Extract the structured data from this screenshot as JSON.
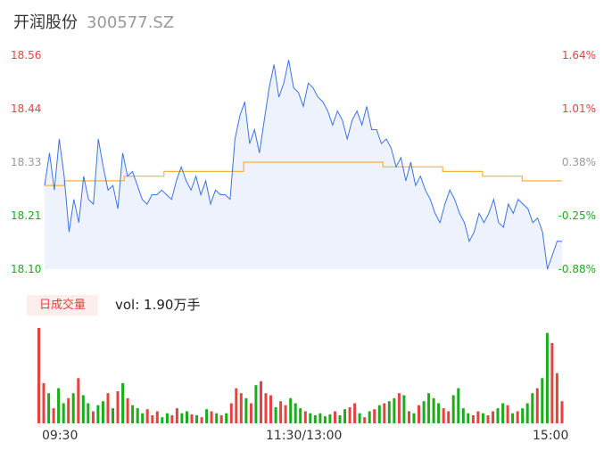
{
  "header": {
    "stock_name": "开润股份",
    "stock_code": "300577.SZ"
  },
  "price_axis": [
    "18.56",
    "18.44",
    "18.33",
    "18.21",
    "18.10"
  ],
  "pct_axis": [
    "1.64%",
    "1.01%",
    "0.38%",
    "-0.25%",
    "-0.88%"
  ],
  "volume_panel": {
    "period_tab": "日成交量",
    "volume_text": "vol: 1.90万手"
  },
  "time_axis": [
    "09:30",
    "11:30/13:00",
    "15:00"
  ],
  "colors": {
    "price_line": "#3b73e8",
    "avg_line": "#f3b33d",
    "up": "#e64340",
    "down": "#1aad19",
    "fill": "#edf2fd"
  },
  "chart_data": [
    {
      "type": "line",
      "x_labels": [
        "09:30",
        "11:30/13:00",
        "15:00"
      ],
      "ylim": [
        18.1,
        18.56
      ],
      "pct_range": [
        "-0.88%",
        "1.64%"
      ],
      "grid": false,
      "series": [
        {
          "values": [
            18.28,
            18.35,
            18.27,
            18.38,
            18.3,
            18.18,
            18.25,
            18.2,
            18.3,
            18.25,
            18.24,
            18.38,
            18.32,
            18.27,
            18.28,
            18.23,
            18.35,
            18.3,
            18.31,
            18.28,
            18.25,
            18.24,
            18.26,
            18.26,
            18.27,
            18.26,
            18.25,
            18.29,
            18.32,
            18.29,
            18.27,
            18.3,
            18.26,
            18.29,
            18.24,
            18.27,
            18.26,
            18.26,
            18.25,
            18.38,
            18.43,
            18.46,
            18.37,
            18.4,
            18.35,
            18.42,
            18.49,
            18.54,
            18.47,
            18.5,
            18.55,
            18.49,
            18.48,
            18.45,
            18.5,
            18.49,
            18.47,
            18.46,
            18.44,
            18.41,
            18.44,
            18.42,
            18.38,
            18.42,
            18.44,
            18.41,
            18.45,
            18.4,
            18.4,
            18.37,
            18.38,
            18.36,
            18.32,
            18.34,
            18.29,
            18.33,
            18.28,
            18.3,
            18.27,
            18.25,
            18.22,
            18.2,
            18.24,
            18.27,
            18.25,
            18.22,
            18.2,
            18.16,
            18.18,
            18.22,
            18.2,
            18.22,
            18.25,
            18.2,
            18.19,
            18.24,
            18.22,
            18.25,
            18.24,
            18.23,
            18.2,
            18.21,
            18.18,
            18.1,
            18.13,
            18.16,
            18.16
          ]
        },
        {
          "values": [
            18.28,
            18.28,
            18.29,
            18.29,
            18.29,
            18.3,
            18.3,
            18.31,
            18.31,
            18.31,
            18.31,
            18.33,
            18.33,
            18.33,
            18.33,
            18.33,
            18.33,
            18.33,
            18.32,
            18.32,
            18.32,
            18.31,
            18.31,
            18.3,
            18.3,
            18.29,
            18.29
          ]
        }
      ]
    },
    {
      "type": "bar",
      "x_labels": [
        "09:30",
        "11:30/13:00",
        "15:00"
      ],
      "series": [
        {
          "values": [
            95,
            40,
            30,
            15,
            35,
            20,
            25,
            30,
            45,
            28,
            20,
            12,
            18,
            22,
            30,
            15,
            32,
            40,
            25,
            18,
            15,
            10,
            14,
            8,
            12,
            6,
            10,
            8,
            15,
            10,
            12,
            9,
            8,
            6,
            14,
            12,
            10,
            8,
            10,
            20,
            35,
            30,
            25,
            20,
            38,
            42,
            30,
            28,
            16,
            22,
            18,
            25,
            20,
            15,
            12,
            10,
            8,
            10,
            7,
            9,
            12,
            8,
            14,
            16,
            20,
            10,
            6,
            12,
            14,
            18,
            20,
            22,
            25,
            30,
            28,
            12,
            10,
            18,
            22,
            30,
            25,
            20,
            15,
            12,
            28,
            35,
            15,
            10,
            8,
            12,
            10,
            8,
            12,
            15,
            20,
            18,
            10,
            12,
            15,
            20,
            30,
            35,
            45,
            90,
            80,
            50,
            22
          ]
        }
      ]
    }
  ]
}
